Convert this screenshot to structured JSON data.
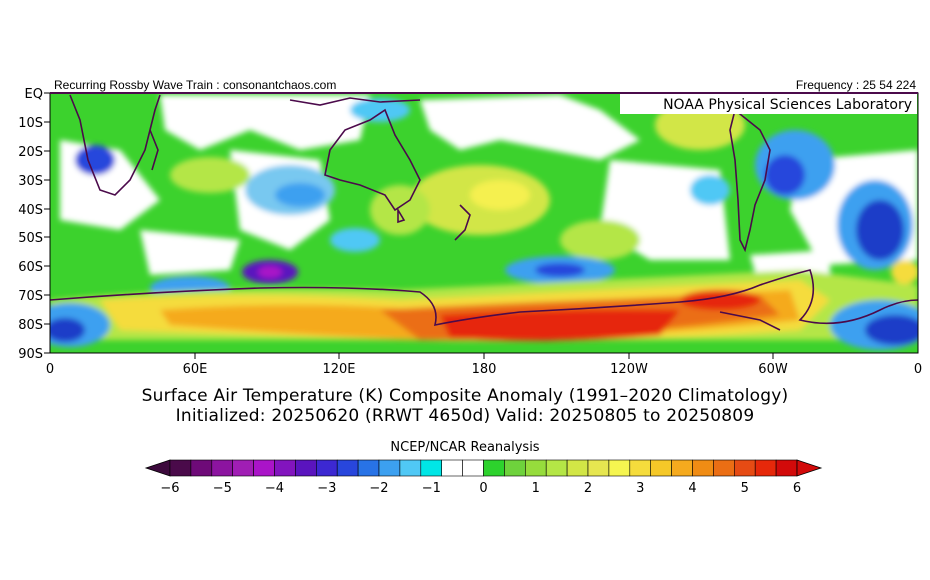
{
  "header": {
    "left_text": "Recurring Rossby Wave Train : consonantchaos.com",
    "right_text": "Frequency : 25 54 224",
    "org_label": "NOAA Physical Sciences Laboratory"
  },
  "map": {
    "lat_labels": [
      "EQ",
      "10S",
      "20S",
      "30S",
      "40S",
      "50S",
      "60S",
      "70S",
      "80S",
      "90S"
    ],
    "lon_labels": [
      "0",
      "60E",
      "120E",
      "180",
      "120W",
      "60W",
      "0"
    ]
  },
  "caption": {
    "line1": "Surface Air Temperature (K) Composite Anomaly (1991–2020 Climatology)",
    "line2": "Initialized: 20250620 (RRWT 4650d) Valid: 20250805 to 20250809"
  },
  "colorbar": {
    "title": "NCEP/NCAR Reanalysis",
    "tick_labels": [
      "−6",
      "−5",
      "−4",
      "−3",
      "−2",
      "−1",
      "0",
      "1",
      "2",
      "3",
      "4",
      "5",
      "6"
    ],
    "colors": [
      "#4a0a4a",
      "#6e0a78",
      "#8c14a0",
      "#a01eb4",
      "#aa14c8",
      "#8214be",
      "#5a14be",
      "#3c28d2",
      "#2846dc",
      "#2873e6",
      "#3ca0f0",
      "#50c8f5",
      "#00e6e6",
      "#ffffff",
      "#ffffff",
      "#2dd22d",
      "#6ed23c",
      "#96dc3c",
      "#b4e646",
      "#d2e646",
      "#e6e650",
      "#f5f550",
      "#f5dc3c",
      "#f5c828",
      "#f5aa1e",
      "#f08c14",
      "#eb6e14",
      "#e64b14",
      "#e6280a",
      "#d20a0a"
    ]
  },
  "colors": {
    "deep_blue": "#1e3cc8",
    "light_blue": "#78c8f0",
    "cyan": "#00e6e6",
    "green": "#3cd22d",
    "lime": "#a0e63c",
    "yellow": "#f5f050",
    "orange": "#f59628",
    "red": "#e6280a",
    "coast": "#4b0a4b"
  }
}
